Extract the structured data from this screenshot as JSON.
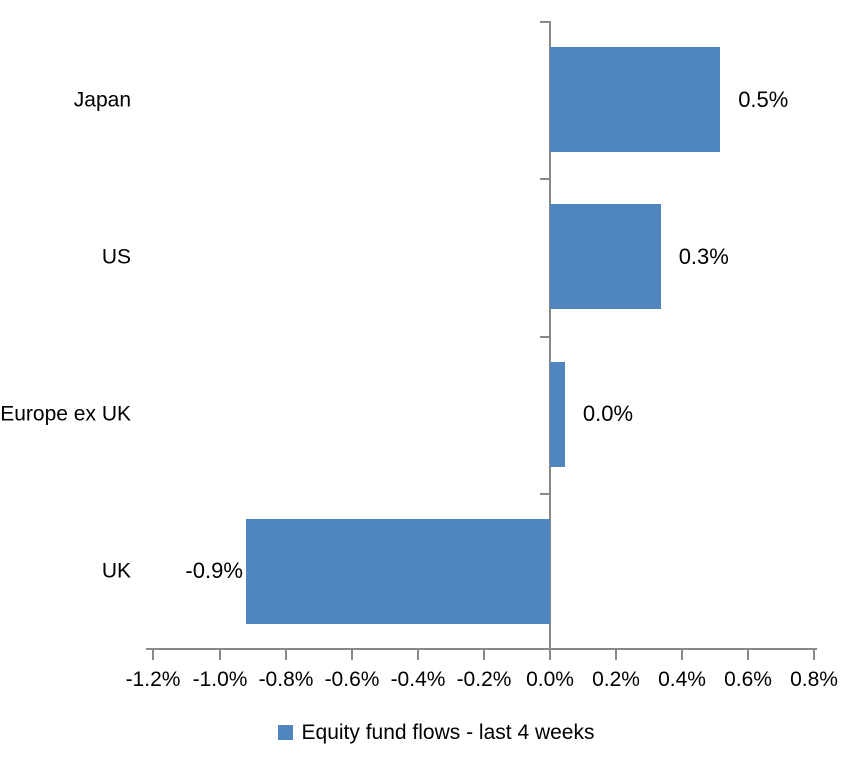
{
  "chart_data": {
    "type": "bar",
    "orientation": "horizontal",
    "title": "",
    "categories": [
      "Japan",
      "US",
      "Europe ex UK",
      "UK"
    ],
    "values": [
      0.5,
      0.3,
      0.0,
      -0.9
    ],
    "data_labels": [
      "0.5%",
      "0.3%",
      "0.0%",
      "-0.9%"
    ],
    "values_precise": [
      0.515,
      0.335,
      0.045,
      -0.92
    ],
    "series": [
      {
        "name": "Equity fund flows - last 4 weeks",
        "values": [
          0.5,
          0.3,
          0.0,
          -0.9
        ]
      }
    ],
    "x_ticks": [
      "-1.2%",
      "-1.0%",
      "-0.8%",
      "-0.6%",
      "-0.4%",
      "-0.2%",
      "0.0%",
      "0.2%",
      "0.4%",
      "0.6%",
      "0.8%"
    ],
    "x_tick_values": [
      -1.2,
      -1.0,
      -0.8,
      -0.6,
      -0.4,
      -0.2,
      0.0,
      0.2,
      0.4,
      0.6,
      0.8
    ],
    "xlim": [
      -1.2,
      0.8
    ],
    "ylabel": "",
    "xlabel": "",
    "grid": false,
    "legend_position": "bottom"
  },
  "legend": {
    "label": "Equity fund flows - last 4 weeks"
  },
  "colors": {
    "bar": "#4F86BD",
    "axis": "#898989",
    "text": "#000000",
    "background": "#FFFFFF"
  }
}
